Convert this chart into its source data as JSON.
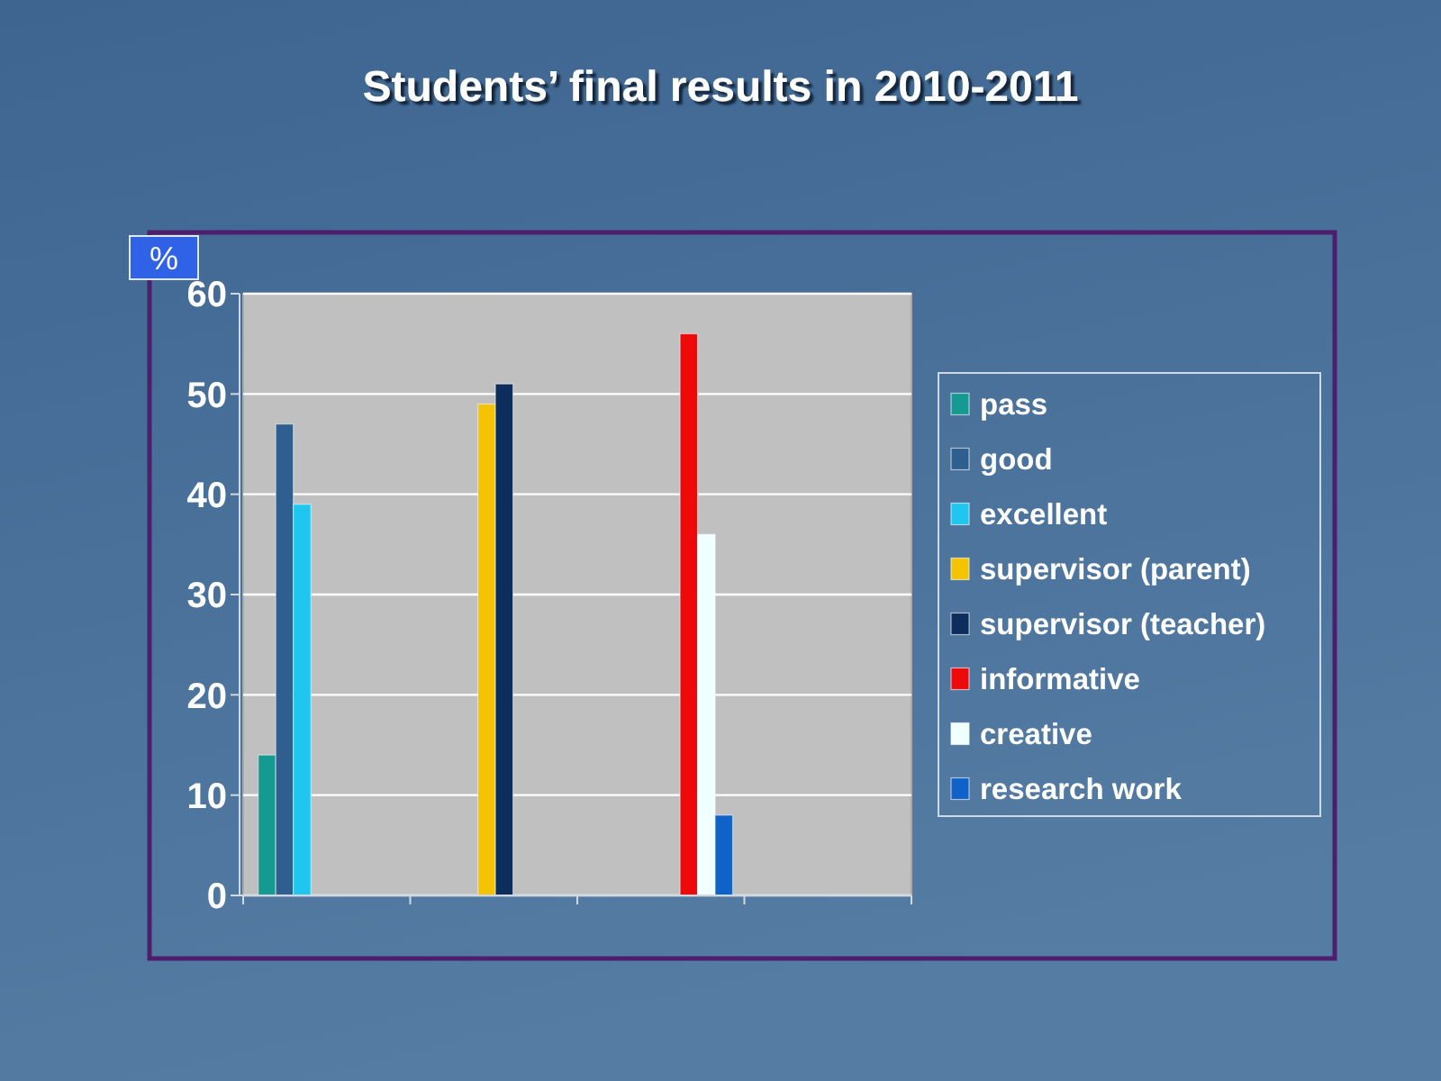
{
  "chart_data": {
    "type": "bar",
    "title": "Students’ final results in 2010-2011",
    "ylabel": "%",
    "categories": [
      null,
      null,
      null,
      null
    ],
    "series": [
      {
        "name": "pass",
        "color": "#159a92",
        "values": [
          14,
          null,
          null,
          null
        ]
      },
      {
        "name": "good",
        "color": "#2e5f8f",
        "values": [
          47,
          null,
          null,
          null
        ]
      },
      {
        "name": "excellent",
        "color": "#1ec6f0",
        "values": [
          39,
          null,
          null,
          null
        ]
      },
      {
        "name": "supervisor (parent)",
        "color": "#f5c400",
        "values": [
          null,
          49,
          null,
          null
        ]
      },
      {
        "name": "supervisor (teacher)",
        "color": "#0d2d5c",
        "values": [
          null,
          51,
          null,
          null
        ]
      },
      {
        "name": "informative",
        "color": "#ee0a0a",
        "values": [
          null,
          null,
          56,
          null
        ]
      },
      {
        "name": "creative",
        "color": "#f0ffff",
        "values": [
          null,
          null,
          36,
          null
        ]
      },
      {
        "name": "research work",
        "color": "#1062c8",
        "values": [
          null,
          null,
          8,
          null
        ]
      }
    ],
    "ylim": [
      0,
      60
    ],
    "yticks": [
      0,
      10,
      20,
      30,
      40,
      50,
      60
    ],
    "grid": "y",
    "legend": "right"
  }
}
